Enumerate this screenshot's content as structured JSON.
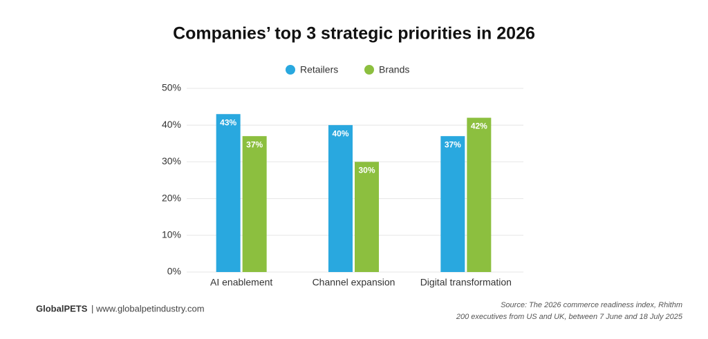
{
  "chart_data": {
    "type": "bar",
    "title": "Companies’ top 3 strategic priorities in 2026",
    "categories": [
      "AI enablement",
      "Channel expansion",
      "Digital transformation"
    ],
    "series": [
      {
        "name": "Retailers",
        "color": "#29a8df",
        "values": [
          43,
          40,
          37
        ],
        "value_labels": [
          "43%",
          "40%",
          "37%"
        ]
      },
      {
        "name": "Brands",
        "color": "#8cbf3f",
        "values": [
          37,
          30,
          42
        ],
        "value_labels": [
          "37%",
          "30%",
          "42%"
        ]
      }
    ],
    "ylim": [
      0,
      50
    ],
    "yticks": [
      {
        "value": 0,
        "label": "0%"
      },
      {
        "value": 10,
        "label": "10%"
      },
      {
        "value": 20,
        "label": "20%"
      },
      {
        "value": 30,
        "label": "30%"
      },
      {
        "value": 40,
        "label": "40%"
      },
      {
        "value": 50,
        "label": "50%"
      }
    ],
    "grid": true,
    "legend": "top",
    "footer": {
      "brand": "GlobalPETS",
      "text": "| www.globalpetindustry.com"
    },
    "source": [
      "Source: The 2026 commerce readiness index, Rhithm",
      "200 executives from US and UK, between 7 June and 18 July 2025"
    ]
  }
}
